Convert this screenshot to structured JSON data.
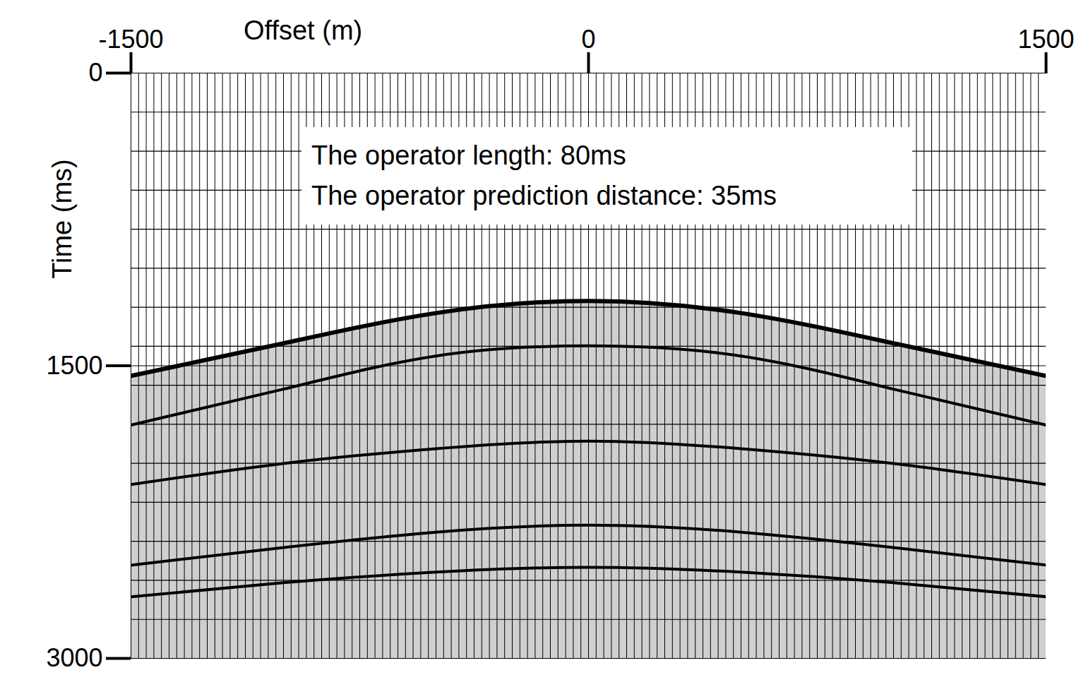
{
  "chart_data": {
    "type": "seismic_gather",
    "x_label": "Offset (m)",
    "y_label": "Time (ms)",
    "annotations": [
      "The operator length: 80ms",
      "The operator prediction distance: 35ms"
    ],
    "xlim": [
      -1500,
      1500
    ],
    "xticks": [
      -1500,
      0,
      1500
    ],
    "ylim": [
      0,
      3000
    ],
    "yticks": [
      0,
      1500,
      3000
    ],
    "grid": true,
    "grid_times": [
      200,
      400,
      600,
      800,
      1000,
      1200,
      1400,
      1600,
      1800,
      2000,
      2200,
      2400,
      2600,
      2800
    ],
    "color": "#000000",
    "trace_offsets": [
      -1500,
      -1475,
      -1450,
      -1425,
      -1400,
      -1375,
      -1350,
      -1325,
      -1300,
      -1275,
      -1250,
      -1225,
      -1200,
      -1175,
      -1150,
      -1125,
      -1100,
      -1075,
      -1050,
      -1025,
      -1000,
      -975,
      -950,
      -925,
      -900,
      -875,
      -850,
      -825,
      -800,
      -775,
      -750,
      -725,
      -700,
      -675,
      -650,
      -625,
      -600,
      -575,
      -550,
      -525,
      -500,
      -475,
      -450,
      -425,
      -400,
      -375,
      -350,
      -325,
      -300,
      -275,
      -250,
      -225,
      -200,
      -175,
      -150,
      -125,
      -100,
      -75,
      -50,
      -25,
      0,
      25,
      50,
      75,
      100,
      125,
      150,
      175,
      200,
      225,
      250,
      275,
      300,
      325,
      350,
      375,
      400,
      425,
      450,
      475,
      500,
      525,
      550,
      575,
      600,
      625,
      650,
      675,
      700,
      725,
      750,
      775,
      800,
      825,
      850,
      875,
      900,
      925,
      950,
      975,
      1000,
      1025,
      1050,
      1075,
      1100,
      1125,
      1150,
      1175,
      1200,
      1225,
      1250,
      1275,
      1300,
      1325,
      1350,
      1375,
      1400,
      1425,
      1450,
      1475,
      1500
    ],
    "events": [
      {
        "x": [
          -1500,
          -1000,
          -500,
          0,
          500,
          1000,
          1500
        ],
        "values": [
          1552,
          1385,
          1230,
          1168,
          1230,
          1385,
          1552
        ]
      },
      {
        "x": [
          -1500,
          -1000,
          -500,
          0,
          500,
          1000,
          1500
        ],
        "values": [
          1804,
          1620,
          1450,
          1398,
          1450,
          1620,
          1804
        ]
      },
      {
        "x": [
          -1500,
          -1000,
          -500,
          0,
          500,
          1000,
          1500
        ],
        "values": [
          2109,
          2001,
          1925,
          1886,
          1925,
          2001,
          2109
        ]
      },
      {
        "x": [
          -1500,
          -1000,
          -500,
          0,
          500,
          1000,
          1500
        ],
        "values": [
          2522,
          2432,
          2353,
          2317,
          2353,
          2432,
          2522
        ]
      },
      {
        "x": [
          -1500,
          -1000,
          -500,
          0,
          500,
          1000,
          1500
        ],
        "values": [
          2684,
          2612,
          2558,
          2533,
          2558,
          2612,
          2684
        ]
      }
    ]
  }
}
